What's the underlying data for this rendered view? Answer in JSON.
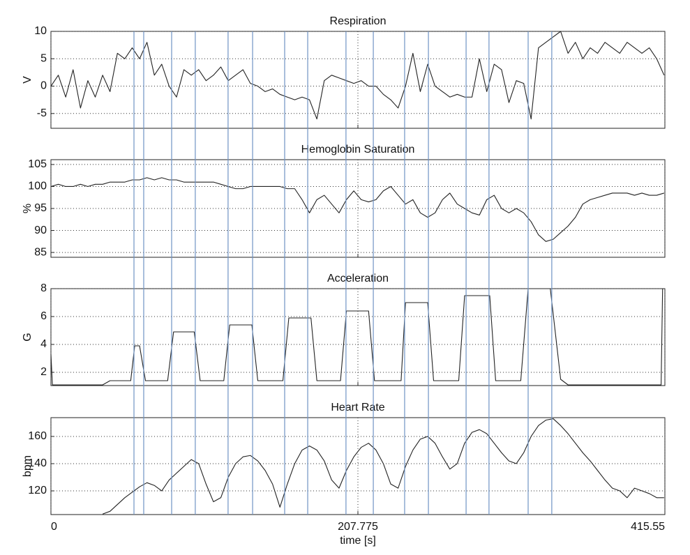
{
  "markers": {
    "x": [
      56.2,
      62.8,
      81.7,
      97.7,
      119.9,
      136.5,
      158.2,
      173.8,
      199.7,
      218.2,
      239.4,
      255.5,
      281.0,
      296.5,
      323.0,
      339.0
    ],
    "color": "#6f93c4"
  },
  "chart_data": [
    {
      "type": "line",
      "title": "Respiration",
      "ylabel": "V",
      "x": [
        0,
        5,
        10,
        15,
        20,
        25,
        30,
        35,
        40,
        45,
        50,
        55,
        60,
        65,
        70,
        75,
        80,
        85,
        90,
        95,
        100,
        105,
        110,
        115,
        120,
        125,
        130,
        135,
        140,
        145,
        150,
        155,
        160,
        165,
        170,
        175,
        180,
        185,
        190,
        195,
        200,
        205,
        210,
        215,
        220,
        225,
        230,
        235,
        240,
        245,
        250,
        255,
        260,
        265,
        270,
        275,
        280,
        285,
        290,
        295,
        300,
        305,
        310,
        315,
        320,
        325,
        330,
        335,
        340,
        345,
        350,
        355,
        360,
        365,
        370,
        375,
        380,
        385,
        390,
        395,
        400,
        405,
        410,
        415
      ],
      "series": [
        {
          "color": "#222222",
          "values": [
            0,
            2,
            -2,
            3,
            -4,
            1,
            -2,
            2,
            -1,
            6,
            5,
            7,
            5,
            8,
            2,
            4,
            0,
            -2,
            3,
            2,
            3,
            1,
            2,
            3.5,
            1,
            2,
            3,
            0.5,
            0,
            -1,
            -0.5,
            -1.5,
            -2,
            -2.5,
            -2,
            -2.5,
            -6,
            1,
            2,
            1.5,
            1,
            0.5,
            1,
            0,
            0,
            -1.5,
            -2.5,
            -4,
            0,
            6,
            -1,
            4,
            0,
            -1,
            -2,
            -1.5,
            -2,
            -2,
            5,
            -1,
            4,
            3,
            -3,
            1,
            0.5,
            -6,
            7,
            8,
            9,
            10,
            6,
            8,
            5,
            7,
            6,
            8,
            7,
            6,
            8,
            7,
            6,
            7,
            5,
            2
          ]
        }
      ],
      "xlim": [
        0,
        415.55
      ],
      "xticks": [
        0,
        207.775,
        415.55
      ],
      "xtick_labels": false,
      "ylim": [
        -7.7,
        10
      ],
      "yticks": [
        -5,
        0,
        5,
        10
      ],
      "grid": true
    },
    {
      "type": "line",
      "title": "Hemoglobin Saturation",
      "ylabel": "%",
      "x": [
        0,
        5,
        10,
        15,
        20,
        25,
        30,
        35,
        40,
        45,
        50,
        55,
        60,
        65,
        70,
        75,
        80,
        85,
        90,
        95,
        100,
        105,
        110,
        115,
        120,
        125,
        130,
        135,
        140,
        145,
        150,
        155,
        160,
        165,
        170,
        175,
        180,
        185,
        190,
        195,
        200,
        205,
        210,
        215,
        220,
        225,
        230,
        235,
        240,
        245,
        250,
        255,
        260,
        265,
        270,
        275,
        280,
        285,
        290,
        295,
        300,
        305,
        310,
        315,
        320,
        325,
        330,
        335,
        340,
        345,
        350,
        355,
        360,
        365,
        370,
        375,
        380,
        385,
        390,
        395,
        400,
        405,
        410,
        415
      ],
      "series": [
        {
          "color": "#222222",
          "values": [
            100,
            100.5,
            100,
            100,
            100.5,
            100,
            100.5,
            100.5,
            101,
            101,
            101,
            101.5,
            101.5,
            102,
            101.5,
            102,
            101.5,
            101.5,
            101,
            101,
            101,
            101,
            101,
            100.5,
            100,
            99.5,
            99.5,
            100,
            100,
            100,
            100,
            100,
            99.5,
            99.5,
            97,
            94,
            97,
            98,
            96,
            94,
            97,
            99,
            97,
            96.5,
            97,
            99,
            100,
            98,
            96,
            97,
            94,
            93,
            94,
            97,
            98.5,
            96,
            95,
            94,
            93.5,
            97,
            98,
            95,
            94,
            95,
            94,
            92,
            89,
            87.5,
            88,
            89.5,
            91,
            93,
            96,
            97,
            97.5,
            98,
            98.5,
            98.5,
            98.5,
            98,
            98.5,
            98,
            98,
            98.5
          ]
        }
      ],
      "xlim": [
        0,
        415.55
      ],
      "xticks": [
        0,
        207.775,
        415.55
      ],
      "xtick_labels": false,
      "ylim": [
        83.9,
        106.1
      ],
      "yticks": [
        85,
        90,
        95,
        100,
        105
      ],
      "grid": true
    },
    {
      "type": "line",
      "title": "Acceleration",
      "ylabel": "G",
      "x": [
        0,
        1,
        35,
        40,
        54,
        56.7,
        60,
        64,
        79,
        83,
        97,
        101,
        117,
        121,
        136,
        140,
        157,
        161,
        176,
        180,
        196,
        200,
        215,
        219,
        237,
        240,
        255,
        259,
        276,
        280,
        297,
        301,
        318,
        323,
        338,
        345,
        350,
        413,
        414,
        415.55
      ],
      "series": [
        {
          "color": "#222222",
          "values": [
            3.3,
            1.1,
            1.1,
            1.4,
            1.4,
            3.9,
            3.9,
            1.4,
            1.4,
            4.9,
            4.9,
            1.4,
            1.4,
            5.4,
            5.4,
            1.4,
            1.4,
            5.9,
            5.9,
            1.4,
            1.4,
            6.4,
            6.4,
            1.4,
            1.4,
            7.0,
            7.0,
            1.4,
            1.4,
            7.5,
            7.5,
            1.4,
            1.4,
            8.0,
            8.0,
            1.5,
            1.1,
            1.1,
            8.0,
            8.0
          ]
        }
      ],
      "xlim": [
        0,
        415.55
      ],
      "xticks": [
        0,
        207.775,
        415.55
      ],
      "xtick_labels": false,
      "ylim": [
        1.05,
        8
      ],
      "yticks": [
        2,
        4,
        6,
        8
      ],
      "grid": true
    },
    {
      "type": "line",
      "title": "Heart Rate",
      "ylabel": "bpm",
      "xlabel": "time [s]",
      "x": [
        0,
        5,
        10,
        15,
        20,
        25,
        30,
        35,
        40,
        45,
        50,
        55,
        60,
        65,
        70,
        75,
        80,
        85,
        90,
        95,
        100,
        105,
        110,
        115,
        120,
        125,
        130,
        135,
        140,
        145,
        150,
        155,
        160,
        165,
        170,
        175,
        180,
        185,
        190,
        195,
        200,
        205,
        210,
        215,
        220,
        225,
        230,
        235,
        240,
        245,
        250,
        255,
        260,
        265,
        270,
        275,
        280,
        285,
        290,
        295,
        300,
        305,
        310,
        315,
        320,
        325,
        330,
        335,
        340,
        345,
        350,
        355,
        360,
        365,
        370,
        375,
        380,
        385,
        390,
        395,
        400,
        405,
        410,
        415
      ],
      "series": [
        {
          "color": "#222222",
          "values": [
            null,
            null,
            null,
            null,
            null,
            null,
            null,
            103,
            105,
            110,
            115,
            119,
            123,
            126,
            124,
            120,
            128,
            133,
            138,
            143,
            140,
            125,
            112,
            115,
            130,
            140,
            145,
            146,
            142,
            135,
            125,
            108,
            125,
            140,
            150,
            153,
            150,
            142,
            128,
            122,
            135,
            145,
            152,
            155,
            150,
            140,
            125,
            122,
            138,
            150,
            158,
            160,
            155,
            145,
            136,
            140,
            155,
            163,
            165,
            162,
            155,
            148,
            142,
            140,
            148,
            160,
            168,
            172,
            173,
            168,
            162,
            155,
            148,
            142,
            135,
            128,
            122,
            120,
            115,
            122,
            120,
            118,
            115,
            115
          ]
        }
      ],
      "xlim": [
        0,
        415.55
      ],
      "xticks": [
        0,
        207.775,
        415.55
      ],
      "xtick_labels": true,
      "ylim": [
        102.6,
        173.8
      ],
      "yticks": [
        120,
        140,
        160
      ],
      "grid": true
    }
  ]
}
